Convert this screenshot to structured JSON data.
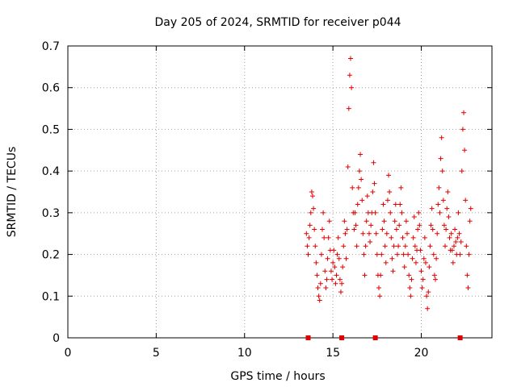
{
  "chart_data": {
    "type": "scatter",
    "title": "Day 205 of 2024, SRMTID for receiver p044",
    "xlabel": "GPS time / hours",
    "ylabel": "SRMTID / TECUs",
    "xlim": [
      0,
      24
    ],
    "ylim": [
      0,
      0.7
    ],
    "x_ticks": [
      0,
      5,
      10,
      15,
      20
    ],
    "y_ticks": [
      0,
      0.1,
      0.2,
      0.3,
      0.4,
      0.5,
      0.6,
      0.7
    ],
    "x_tick_labels": [
      "0",
      "5",
      "10",
      "15",
      "20"
    ],
    "y_tick_labels": [
      "0",
      "0.1",
      "0.2",
      "0.3",
      "0.4",
      "0.5",
      "0.6",
      "0.7"
    ],
    "grid": true,
    "marker": "plus",
    "color": "#e00000",
    "series": [
      {
        "name": "SRMTID",
        "points": [
          [
            13.5,
            0.25
          ],
          [
            13.55,
            0.22
          ],
          [
            13.6,
            0.2
          ],
          [
            13.65,
            0.24
          ],
          [
            13.7,
            0.27
          ],
          [
            13.75,
            0.3
          ],
          [
            13.8,
            0.35
          ],
          [
            13.85,
            0.34
          ],
          [
            13.9,
            0.31
          ],
          [
            13.95,
            0.26
          ],
          [
            14.0,
            0.22
          ],
          [
            14.05,
            0.18
          ],
          [
            14.1,
            0.15
          ],
          [
            14.15,
            0.12
          ],
          [
            14.2,
            0.1
          ],
          [
            14.25,
            0.09
          ],
          [
            14.3,
            0.13
          ],
          [
            14.35,
            0.2
          ],
          [
            14.4,
            0.26
          ],
          [
            14.45,
            0.3
          ],
          [
            14.5,
            0.24
          ],
          [
            14.55,
            0.16
          ],
          [
            14.6,
            0.12
          ],
          [
            14.65,
            0.14
          ],
          [
            14.7,
            0.19
          ],
          [
            14.75,
            0.24
          ],
          [
            14.8,
            0.28
          ],
          [
            14.85,
            0.21
          ],
          [
            14.9,
            0.16
          ],
          [
            14.95,
            0.14
          ],
          [
            15.0,
            0.18
          ],
          [
            15.05,
            0.21
          ],
          [
            15.1,
            0.17
          ],
          [
            15.15,
            0.13
          ],
          [
            15.2,
            0.15
          ],
          [
            15.25,
            0.2
          ],
          [
            15.3,
            0.24
          ],
          [
            15.35,
            0.19
          ],
          [
            15.4,
            0.14
          ],
          [
            15.45,
            0.11
          ],
          [
            15.5,
            0.13
          ],
          [
            15.55,
            0.17
          ],
          [
            15.6,
            0.22
          ],
          [
            15.65,
            0.28
          ],
          [
            15.7,
            0.25
          ],
          [
            15.75,
            0.19
          ],
          [
            15.8,
            0.26
          ],
          [
            15.85,
            0.41
          ],
          [
            15.9,
            0.55
          ],
          [
            15.95,
            0.63
          ],
          [
            16.0,
            0.67
          ],
          [
            16.05,
            0.6
          ],
          [
            16.1,
            0.36
          ],
          [
            16.15,
            0.3
          ],
          [
            16.2,
            0.26
          ],
          [
            16.25,
            0.3
          ],
          [
            16.3,
            0.27
          ],
          [
            16.35,
            0.22
          ],
          [
            16.4,
            0.32
          ],
          [
            16.45,
            0.36
          ],
          [
            16.5,
            0.4
          ],
          [
            16.55,
            0.44
          ],
          [
            16.6,
            0.38
          ],
          [
            16.65,
            0.33
          ],
          [
            16.7,
            0.25
          ],
          [
            16.75,
            0.2
          ],
          [
            16.8,
            0.15
          ],
          [
            16.85,
            0.22
          ],
          [
            16.9,
            0.28
          ],
          [
            16.95,
            0.34
          ],
          [
            17.0,
            0.3
          ],
          [
            17.05,
            0.25
          ],
          [
            17.1,
            0.23
          ],
          [
            17.15,
            0.27
          ],
          [
            17.2,
            0.3
          ],
          [
            17.25,
            0.35
          ],
          [
            17.3,
            0.42
          ],
          [
            17.35,
            0.37
          ],
          [
            17.4,
            0.3
          ],
          [
            17.45,
            0.25
          ],
          [
            17.5,
            0.2
          ],
          [
            17.55,
            0.15
          ],
          [
            17.6,
            0.12
          ],
          [
            17.65,
            0.1
          ],
          [
            17.7,
            0.15
          ],
          [
            17.75,
            0.2
          ],
          [
            17.8,
            0.26
          ],
          [
            17.85,
            0.32
          ],
          [
            17.9,
            0.28
          ],
          [
            17.95,
            0.22
          ],
          [
            18.0,
            0.18
          ],
          [
            18.05,
            0.25
          ],
          [
            18.1,
            0.33
          ],
          [
            18.15,
            0.39
          ],
          [
            18.2,
            0.35
          ],
          [
            18.25,
            0.3
          ],
          [
            18.3,
            0.24
          ],
          [
            18.35,
            0.19
          ],
          [
            18.4,
            0.16
          ],
          [
            18.45,
            0.22
          ],
          [
            18.5,
            0.28
          ],
          [
            18.55,
            0.32
          ],
          [
            18.6,
            0.26
          ],
          [
            18.65,
            0.2
          ],
          [
            18.7,
            0.22
          ],
          [
            18.75,
            0.27
          ],
          [
            18.8,
            0.32
          ],
          [
            18.85,
            0.36
          ],
          [
            18.9,
            0.3
          ],
          [
            18.95,
            0.24
          ],
          [
            19.0,
            0.2
          ],
          [
            19.05,
            0.17
          ],
          [
            19.1,
            0.22
          ],
          [
            19.15,
            0.28
          ],
          [
            19.2,
            0.25
          ],
          [
            19.25,
            0.2
          ],
          [
            19.3,
            0.15
          ],
          [
            19.35,
            0.12
          ],
          [
            19.4,
            0.1
          ],
          [
            19.45,
            0.14
          ],
          [
            19.5,
            0.19
          ],
          [
            19.55,
            0.24
          ],
          [
            19.6,
            0.29
          ],
          [
            19.65,
            0.22
          ],
          [
            19.7,
            0.18
          ],
          [
            19.75,
            0.21
          ],
          [
            19.8,
            0.26
          ],
          [
            19.85,
            0.3
          ],
          [
            19.9,
            0.27
          ],
          [
            19.95,
            0.21
          ],
          [
            20.0,
            0.16
          ],
          [
            20.05,
            0.12
          ],
          [
            20.1,
            0.14
          ],
          [
            20.15,
            0.19
          ],
          [
            20.2,
            0.24
          ],
          [
            20.25,
            0.18
          ],
          [
            20.3,
            0.1
          ],
          [
            20.35,
            0.07
          ],
          [
            20.4,
            0.11
          ],
          [
            20.45,
            0.17
          ],
          [
            20.5,
            0.22
          ],
          [
            20.55,
            0.27
          ],
          [
            20.6,
            0.31
          ],
          [
            20.65,
            0.26
          ],
          [
            20.7,
            0.2
          ],
          [
            20.75,
            0.15
          ],
          [
            20.8,
            0.14
          ],
          [
            20.85,
            0.19
          ],
          [
            20.9,
            0.25
          ],
          [
            20.95,
            0.32
          ],
          [
            21.0,
            0.36
          ],
          [
            21.05,
            0.3
          ],
          [
            21.1,
            0.43
          ],
          [
            21.15,
            0.48
          ],
          [
            21.2,
            0.4
          ],
          [
            21.25,
            0.33
          ],
          [
            21.3,
            0.27
          ],
          [
            21.35,
            0.22
          ],
          [
            21.4,
            0.26
          ],
          [
            21.45,
            0.31
          ],
          [
            21.5,
            0.35
          ],
          [
            21.55,
            0.29
          ],
          [
            21.6,
            0.24
          ],
          [
            21.65,
            0.21
          ],
          [
            21.7,
            0.25
          ],
          [
            21.75,
            0.21
          ],
          [
            21.8,
            0.18
          ],
          [
            21.85,
            0.22
          ],
          [
            21.9,
            0.26
          ],
          [
            21.95,
            0.23
          ],
          [
            22.0,
            0.2
          ],
          [
            22.05,
            0.24
          ],
          [
            22.1,
            0.3
          ],
          [
            22.15,
            0.25
          ],
          [
            22.2,
            0.2
          ],
          [
            22.25,
            0.23
          ],
          [
            22.3,
            0.4
          ],
          [
            22.35,
            0.5
          ],
          [
            22.4,
            0.54
          ],
          [
            22.45,
            0.45
          ],
          [
            22.5,
            0.33
          ],
          [
            22.55,
            0.22
          ],
          [
            22.6,
            0.15
          ],
          [
            22.65,
            0.12
          ],
          [
            22.7,
            0.2
          ],
          [
            22.75,
            0.28
          ],
          [
            22.8,
            0.31
          ]
        ]
      }
    ],
    "gap_markers_x": [
      13.6,
      15.5,
      17.4,
      22.2
    ]
  }
}
